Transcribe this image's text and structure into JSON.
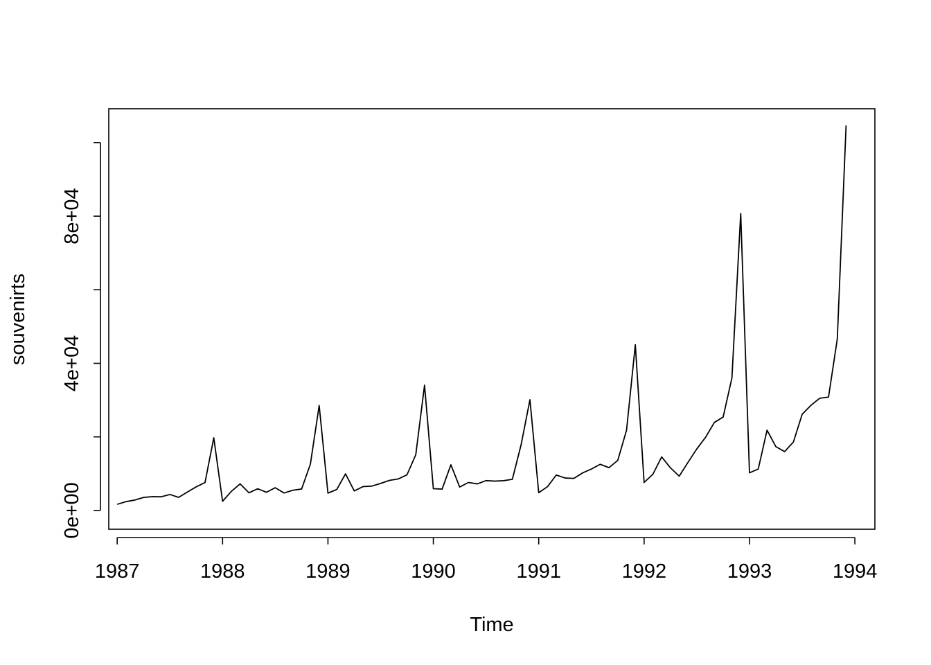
{
  "chart_data": {
    "type": "line",
    "xlabel": "Time",
    "ylabel": "souvenirts",
    "xlim": [
      1986.92,
      1994.19
    ],
    "ylim": [
      -5100,
      109200
    ],
    "x_ticks": [
      1987,
      1988,
      1989,
      1990,
      1991,
      1992,
      1993,
      1994
    ],
    "x_tick_labels": [
      "1987",
      "1988",
      "1989",
      "1990",
      "1991",
      "1992",
      "1993",
      "1994"
    ],
    "y_ticks": [
      0,
      20000,
      40000,
      60000,
      80000,
      100000
    ],
    "y_tick_labels": [
      {
        "value": 0,
        "label": "0e+00"
      },
      {
        "value": 40000,
        "label": "4e+04"
      },
      {
        "value": 80000,
        "label": "8e+04"
      }
    ],
    "grid": false,
    "legend": "none",
    "series": [
      {
        "start": [
          1987,
          1
        ],
        "frequency": 12,
        "color": "#000000",
        "values": [
          1664.81,
          2397.53,
          2840.71,
          3547.29,
          3752.96,
          3714.74,
          4349.61,
          3566.34,
          5021.82,
          6423.48,
          7600.6,
          19756.21,
          2499.81,
          5198.24,
          7225.14,
          4806.03,
          5900.88,
          4951.34,
          6179.12,
          4752.15,
          5496.43,
          5835.1,
          12600.08,
          28541.72,
          4717.02,
          5702.63,
          9957.58,
          5304.78,
          6492.43,
          6630.8,
          7349.62,
          8176.62,
          8573.17,
          9690.5,
          15151.84,
          34061.01,
          5921.1,
          5814.58,
          12421.25,
          6369.77,
          7609.12,
          7224.75,
          8121.22,
          7979.25,
          8093.06,
          8476.7,
          17914.66,
          30114.41,
          4826.64,
          6470.23,
          9638.77,
          8821.17,
          8722.37,
          10209.48,
          11276.55,
          12552.22,
          11637.39,
          13606.89,
          21822.11,
          45060.69,
          7615.03,
          9849.69,
          14558.4,
          11587.33,
          9332.56,
          13082.09,
          16732.78,
          19888.61,
          23933.38,
          25391.35,
          36024.8,
          80721.71,
          10243.24,
          11266.88,
          21826.84,
          17357.33,
          15997.79,
          18601.53,
          26155.15,
          28586.52,
          30505.41,
          30821.33,
          46634.38,
          104660.67
        ]
      }
    ]
  }
}
